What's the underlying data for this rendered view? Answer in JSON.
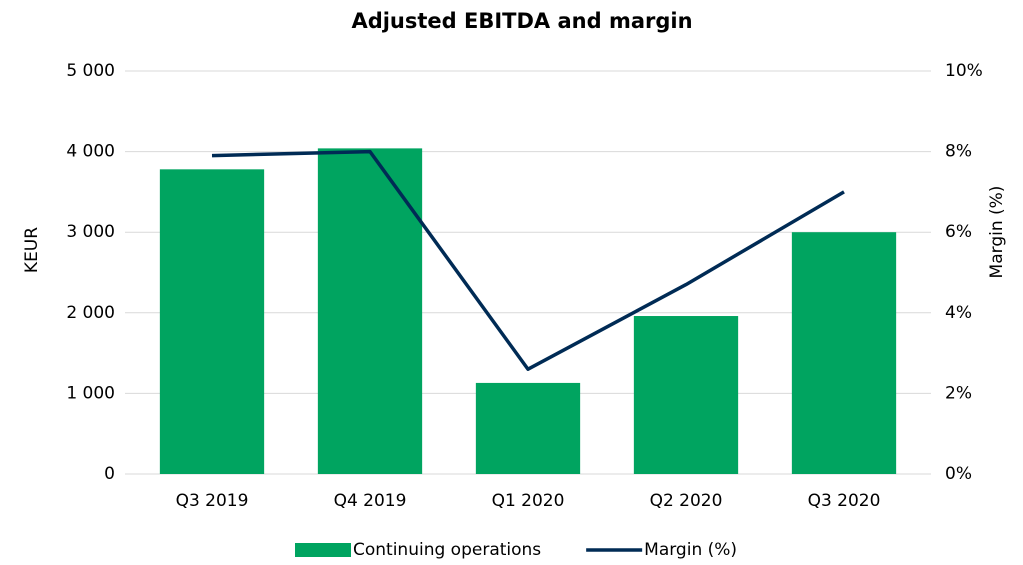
{
  "chart_data": {
    "type": "bar_line",
    "title": "Adjusted EBITDA and margin",
    "categories": [
      "Q3 2019",
      "Q4 2019",
      "Q1 2020",
      "Q2 2020",
      "Q3 2020"
    ],
    "series": [
      {
        "name": "Continuing operations",
        "color": "#00a460",
        "type": "bar",
        "values": [
          3780,
          4040,
          1130,
          1960,
          3000
        ]
      },
      {
        "name": "Margin (%)",
        "color": "#002b55",
        "type": "line",
        "axis": "y2",
        "values": [
          7.9,
          8.0,
          2.6,
          4.7,
          7.0
        ]
      }
    ],
    "ylabel": "KEUR",
    "y2label": "Margin (%)",
    "ylim": [
      0,
      5000
    ],
    "yticks": [
      0,
      {
        "value": 1000,
        "label": "1 000"
      },
      {
        "value": 2000,
        "label": "2 000"
      },
      {
        "value": 3000,
        "label": "3 000"
      },
      {
        "value": 4000,
        "label": "4 000"
      },
      {
        "value": 5000,
        "label": "5 000"
      }
    ],
    "y2lim": [
      0,
      10
    ],
    "y2ticks": [
      {
        "value": 0,
        "label": "0%"
      },
      {
        "value": 2,
        "label": "2%"
      },
      {
        "value": 4,
        "label": "4%"
      },
      {
        "value": 6,
        "label": "6%"
      },
      {
        "value": 8,
        "label": "8%"
      },
      {
        "value": 10,
        "label": "10%"
      }
    ],
    "grid": true,
    "legend": "bottom"
  }
}
